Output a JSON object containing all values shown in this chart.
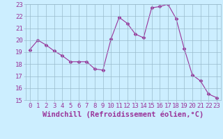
{
  "x": [
    0,
    1,
    2,
    3,
    4,
    5,
    6,
    7,
    8,
    9,
    10,
    11,
    12,
    13,
    14,
    15,
    16,
    17,
    18,
    19,
    20,
    21,
    22,
    23
  ],
  "y": [
    19.2,
    20.0,
    19.6,
    19.1,
    18.7,
    18.2,
    18.2,
    18.2,
    17.6,
    17.5,
    20.1,
    21.9,
    21.4,
    20.5,
    20.2,
    22.7,
    22.8,
    23.0,
    21.8,
    19.3,
    17.1,
    16.6,
    15.5,
    15.2
  ],
  "xlabel": "Windchill (Refroidissement éolien,°C)",
  "ylim": [
    15,
    23
  ],
  "xlim_min": -0.5,
  "xlim_max": 23.5,
  "yticks": [
    15,
    16,
    17,
    18,
    19,
    20,
    21,
    22,
    23
  ],
  "xticks": [
    0,
    1,
    2,
    3,
    4,
    5,
    6,
    7,
    8,
    9,
    10,
    11,
    12,
    13,
    14,
    15,
    16,
    17,
    18,
    19,
    20,
    21,
    22,
    23
  ],
  "line_color": "#993399",
  "marker": "D",
  "marker_size": 2.5,
  "bg_color": "#cceeff",
  "grid_color": "#99bbcc",
  "font_color": "#993399",
  "font_family": "monospace",
  "tick_fontsize": 6.5,
  "xlabel_fontsize": 7.5
}
